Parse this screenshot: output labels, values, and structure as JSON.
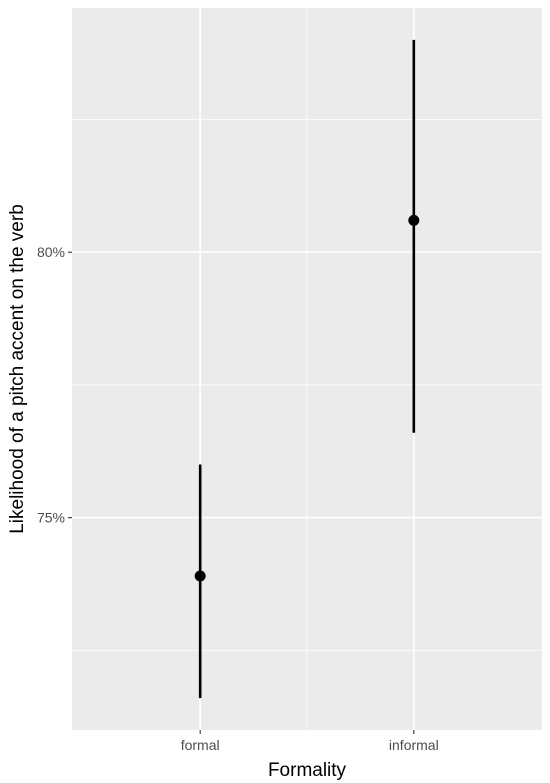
{
  "chart_data": {
    "type": "pointrange",
    "title": "",
    "xlabel": "Formality",
    "ylabel": "Likelihood of a pitch accent on the verb",
    "categories": [
      "formal",
      "informal"
    ],
    "estimates": [
      73.9,
      80.6
    ],
    "lower": [
      71.6,
      76.6
    ],
    "upper": [
      76.0,
      84.0
    ],
    "y_unit": "%",
    "ylim": [
      71.0,
      84.6
    ],
    "y_major_ticks": [
      75,
      80
    ],
    "y_tick_labels": [
      "75%",
      "80%"
    ],
    "y_minor_ticks": [
      72.5,
      77.5,
      82.5
    ],
    "grid": true,
    "colors": {
      "panel_background": "#ebebeb",
      "grid_line": "#ffffff",
      "mark": "#000000",
      "tick_label": "#4d4d4d",
      "axis_title": "#000000"
    }
  }
}
